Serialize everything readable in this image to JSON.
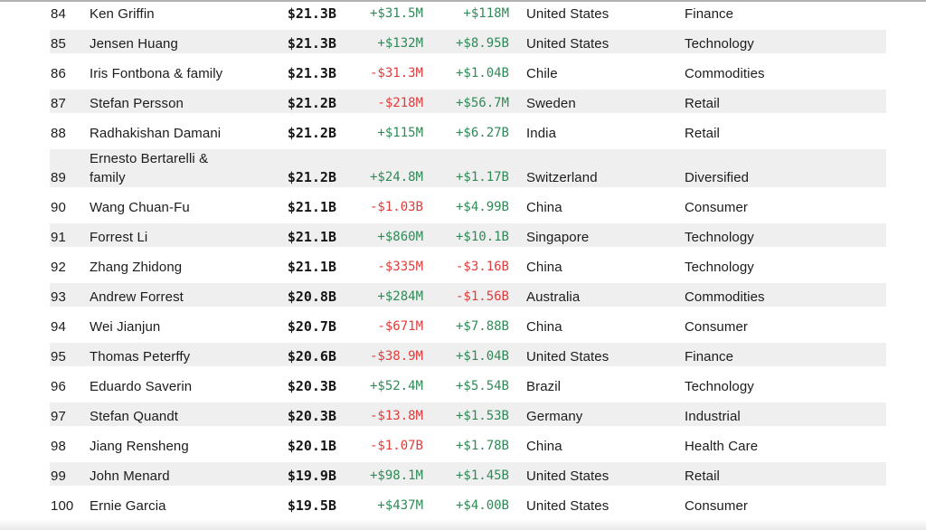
{
  "theme": {
    "positive_color": "#2f8a57",
    "negative_color": "#e03c3c",
    "stripe_color": "#efefef",
    "text_color": "#1c1c1c",
    "divider_color": "#b2b2b2"
  },
  "table": {
    "rows": [
      {
        "rank": "84",
        "name": "Ken Griffin",
        "net_worth": "$21.3B",
        "last_change": "+$31.5M",
        "ytd_change": "+$118M",
        "country": "United States",
        "industry": "Finance"
      },
      {
        "rank": "85",
        "name": "Jensen Huang",
        "net_worth": "$21.3B",
        "last_change": "+$132M",
        "ytd_change": "+$8.95B",
        "country": "United States",
        "industry": "Technology"
      },
      {
        "rank": "86",
        "name": "Iris Fontbona & family",
        "net_worth": "$21.3B",
        "last_change": "-$31.3M",
        "ytd_change": "+$1.04B",
        "country": "Chile",
        "industry": "Commodities"
      },
      {
        "rank": "87",
        "name": "Stefan Persson",
        "net_worth": "$21.2B",
        "last_change": "-$218M",
        "ytd_change": "+$56.7M",
        "country": "Sweden",
        "industry": "Retail"
      },
      {
        "rank": "88",
        "name": "Radhakishan Damani",
        "net_worth": "$21.2B",
        "last_change": "+$115M",
        "ytd_change": "+$6.27B",
        "country": "India",
        "industry": "Retail"
      },
      {
        "rank": "89",
        "name": "Ernesto Bertarelli & family",
        "net_worth": "$21.2B",
        "last_change": "+$24.8M",
        "ytd_change": "+$1.17B",
        "country": "Switzerland",
        "industry": "Diversified"
      },
      {
        "rank": "90",
        "name": "Wang Chuan-Fu",
        "net_worth": "$21.1B",
        "last_change": "-$1.03B",
        "ytd_change": "+$4.99B",
        "country": "China",
        "industry": "Consumer"
      },
      {
        "rank": "91",
        "name": "Forrest Li",
        "net_worth": "$21.1B",
        "last_change": "+$860M",
        "ytd_change": "+$10.1B",
        "country": "Singapore",
        "industry": "Technology"
      },
      {
        "rank": "92",
        "name": "Zhang Zhidong",
        "net_worth": "$21.1B",
        "last_change": "-$335M",
        "ytd_change": "-$3.16B",
        "country": "China",
        "industry": "Technology"
      },
      {
        "rank": "93",
        "name": "Andrew Forrest",
        "net_worth": "$20.8B",
        "last_change": "+$284M",
        "ytd_change": "-$1.56B",
        "country": "Australia",
        "industry": "Commodities"
      },
      {
        "rank": "94",
        "name": "Wei Jianjun",
        "net_worth": "$20.7B",
        "last_change": "-$671M",
        "ytd_change": "+$7.88B",
        "country": "China",
        "industry": "Consumer"
      },
      {
        "rank": "95",
        "name": "Thomas Peterffy",
        "net_worth": "$20.6B",
        "last_change": "-$38.9M",
        "ytd_change": "+$1.04B",
        "country": "United States",
        "industry": "Finance"
      },
      {
        "rank": "96",
        "name": "Eduardo Saverin",
        "net_worth": "$20.3B",
        "last_change": "+$52.4M",
        "ytd_change": "+$5.54B",
        "country": "Brazil",
        "industry": "Technology"
      },
      {
        "rank": "97",
        "name": "Stefan Quandt",
        "net_worth": "$20.3B",
        "last_change": "-$13.8M",
        "ytd_change": "+$1.53B",
        "country": "Germany",
        "industry": "Industrial"
      },
      {
        "rank": "98",
        "name": "Jiang Rensheng",
        "net_worth": "$20.1B",
        "last_change": "-$1.07B",
        "ytd_change": "+$1.78B",
        "country": "China",
        "industry": "Health Care"
      },
      {
        "rank": "99",
        "name": "John Menard",
        "net_worth": "$19.9B",
        "last_change": "+$98.1M",
        "ytd_change": "+$1.45B",
        "country": "United States",
        "industry": "Retail"
      },
      {
        "rank": "100",
        "name": "Ernie Garcia",
        "net_worth": "$19.5B",
        "last_change": "+$437M",
        "ytd_change": "+$4.00B",
        "country": "United States",
        "industry": "Consumer"
      }
    ]
  }
}
